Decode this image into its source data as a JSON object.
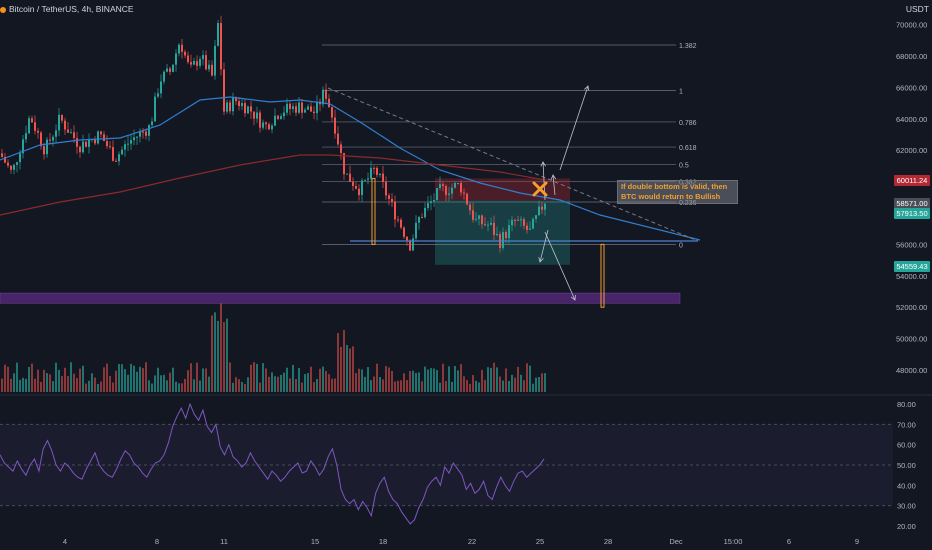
{
  "header": {
    "title": "Bitcoin / TetherUS, 4h, BINANCE",
    "currency": "USDT"
  },
  "annotation": {
    "line1": "If double bottom is valid, then",
    "line2": "BTC would return to Bullish"
  },
  "price_tags": [
    {
      "text": "60011.24",
      "color": "#b22833",
      "value": 60011.24
    },
    {
      "text": "58571.00",
      "color": "#4a4e58",
      "value": 58571
    },
    {
      "text": "57913.50",
      "color": "#26a69a",
      "value": 57913.5
    },
    {
      "text": "54559.43",
      "color": "#26a69a",
      "value": 54559.43
    }
  ],
  "fib_levels": [
    {
      "label": "1.382",
      "value": 68700
    },
    {
      "label": "1",
      "value": 65800
    },
    {
      "label": "0.786",
      "value": 63800
    },
    {
      "label": "0.618",
      "value": 62200
    },
    {
      "label": "0.5",
      "value": 61100
    },
    {
      "label": "0.382",
      "value": 60000
    },
    {
      "label": "0.236",
      "value": 58700
    },
    {
      "label": "0",
      "value": 56000
    }
  ],
  "colors": {
    "up": "#26a69a",
    "down": "#ef5350",
    "ema_short": "#2f7fd0",
    "ema_long": "#8b2a2a",
    "rsi": "#7e57c2",
    "trendline": "#4a84d0",
    "support_band": "#5b2b80"
  },
  "chart_data": {
    "type": "candlestick",
    "title": "Bitcoin / TetherUS, 4h, BINANCE",
    "x_ticks": [
      "4",
      "8",
      "11",
      "15",
      "18",
      "22",
      "25",
      "28",
      "Dec",
      "15:00",
      "6",
      "9"
    ],
    "y_ticks": [
      "70000.00",
      "68000.00",
      "66000.00",
      "64000.00",
      "62000.00",
      "60000.00",
      "58000.00",
      "56000.00",
      "54000.00",
      "52000.00",
      "50000.00",
      "48000.00"
    ],
    "ylim": [
      46600,
      70800
    ],
    "rsi": {
      "ticks": [
        "80.00",
        "70.00",
        "60.00",
        "50.00",
        "40.00",
        "30.00",
        "20.00"
      ],
      "ylim": [
        17,
        83
      ],
      "bands": [
        30,
        50,
        70
      ],
      "values": [
        55,
        51,
        49,
        47,
        52,
        48,
        45,
        50,
        53,
        47,
        58,
        62,
        57,
        50,
        47,
        51,
        49,
        46,
        44,
        43,
        48,
        52,
        56,
        50,
        47,
        45,
        44,
        48,
        53,
        57,
        55,
        51,
        49,
        46,
        44,
        48,
        51,
        52,
        55,
        61,
        69,
        74,
        78,
        73,
        80,
        75,
        72,
        77,
        69,
        66,
        70,
        59,
        55,
        60,
        54,
        52,
        49,
        51,
        56,
        52,
        49,
        46,
        43,
        47,
        45,
        42,
        44,
        47,
        49,
        51,
        46,
        47,
        52,
        49,
        45,
        48,
        54,
        58,
        50,
        38,
        33,
        31,
        33,
        28,
        32,
        29,
        25,
        36,
        41,
        44,
        37,
        33,
        31,
        27,
        24,
        21,
        23,
        29,
        33,
        39,
        42,
        44,
        40,
        49,
        46,
        51,
        48,
        45,
        38,
        41,
        36,
        38,
        42,
        35,
        33,
        39,
        44,
        40,
        37,
        42,
        46,
        47,
        44,
        46,
        48,
        50,
        53
      ]
    }
  }
}
